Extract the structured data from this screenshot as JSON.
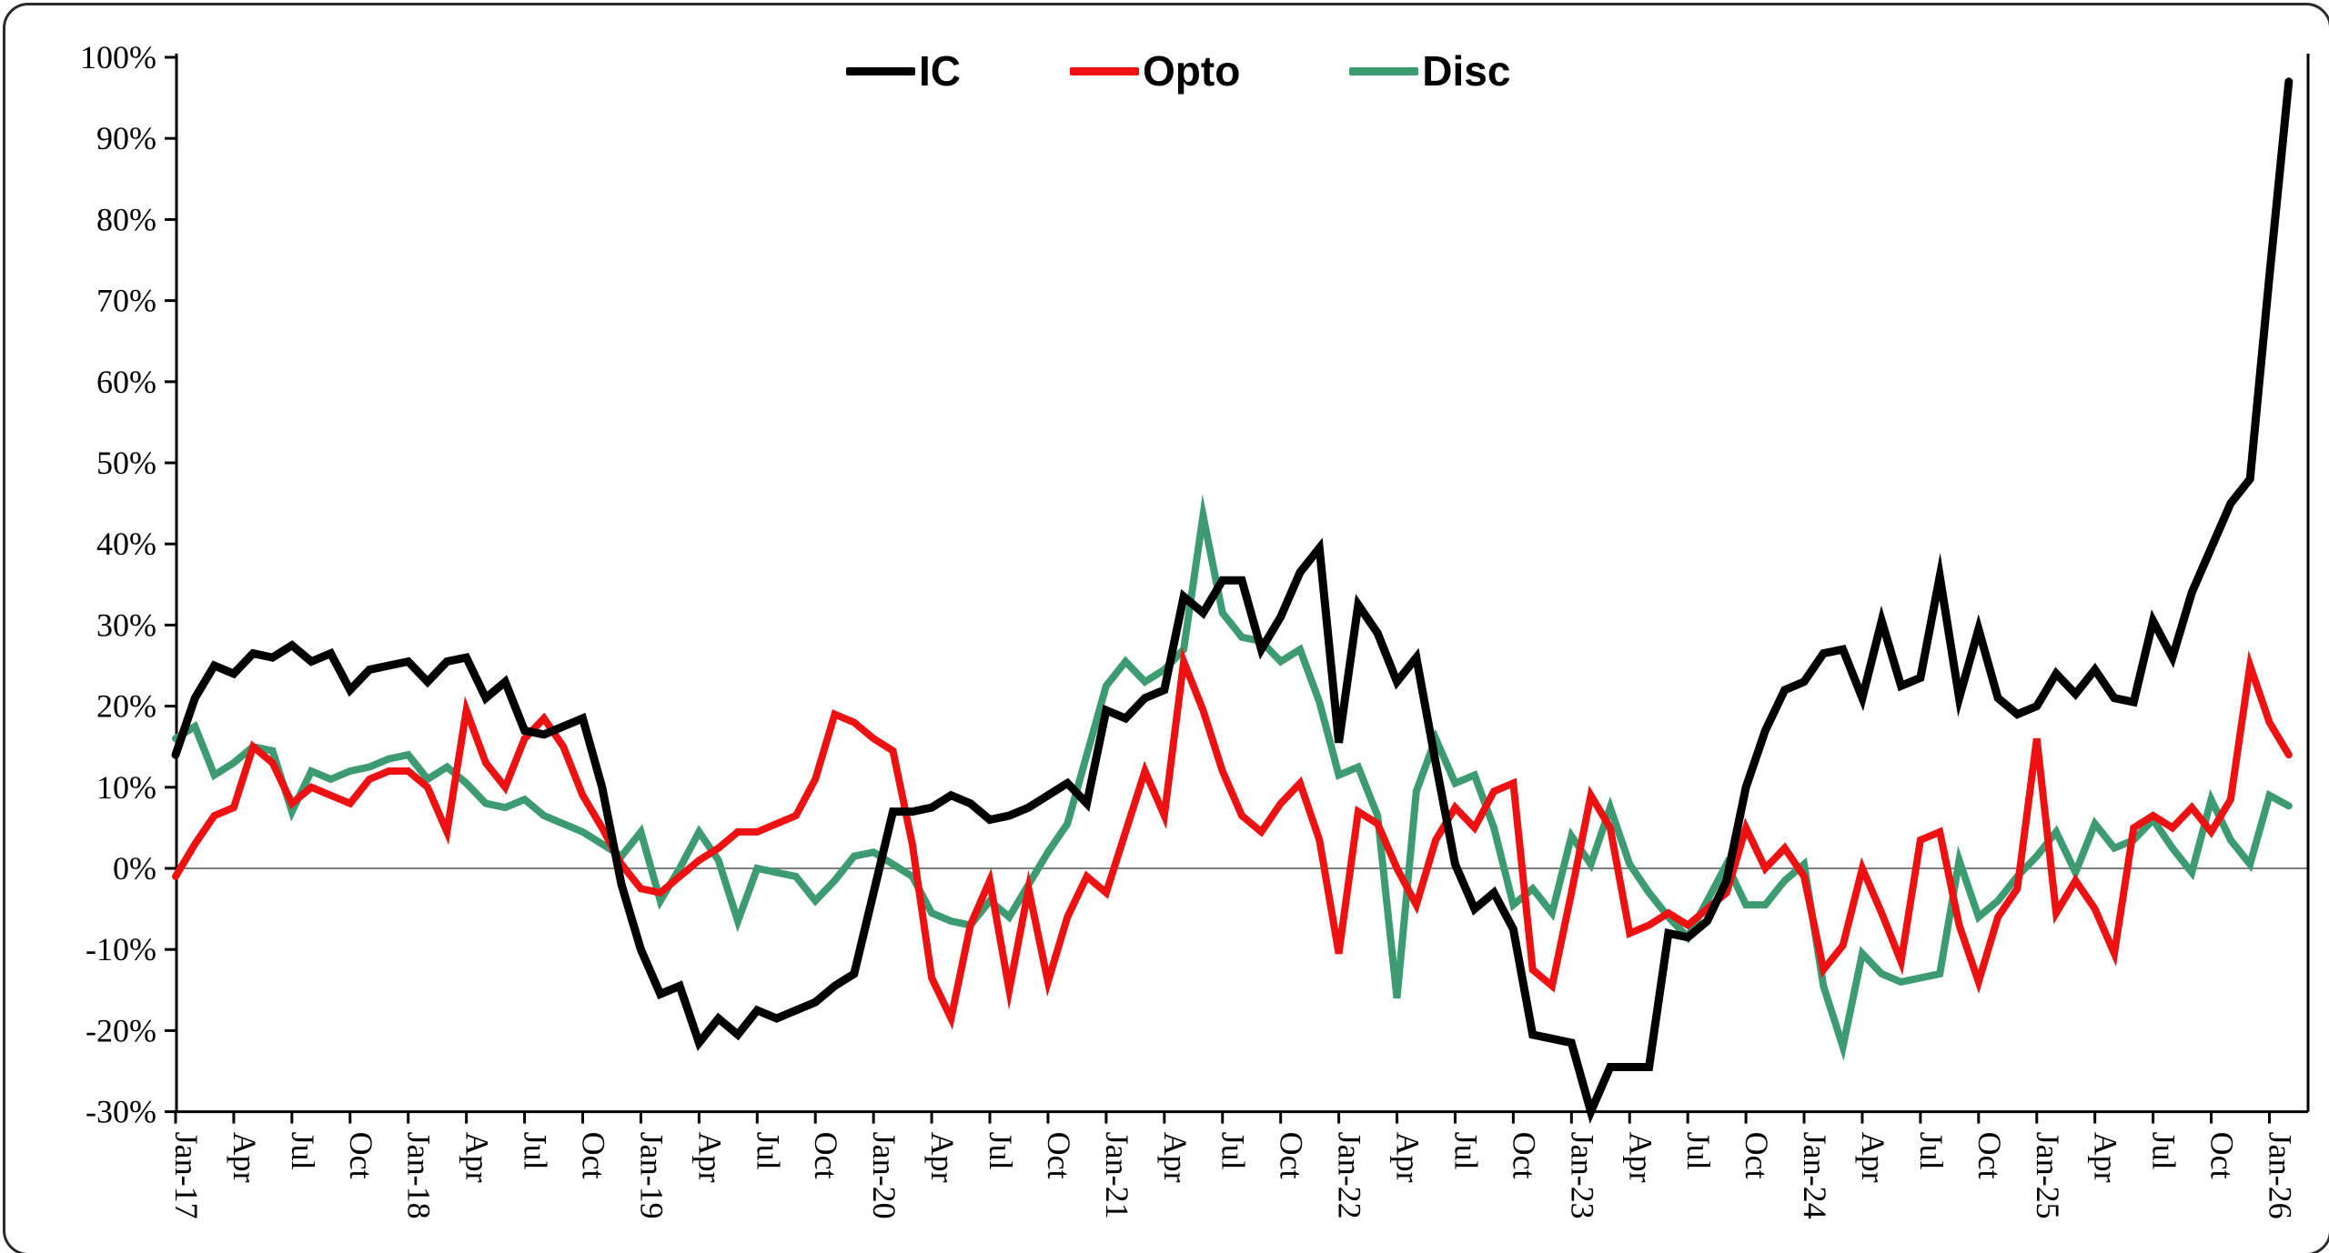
{
  "chart_data": {
    "type": "line",
    "title": "",
    "xlabel": "",
    "ylabel": "",
    "ylim": [
      -30,
      100
    ],
    "y_tick_step": 10,
    "y_tick_labels": [
      "100%",
      "90%",
      "80%",
      "70%",
      "60%",
      "50%",
      "40%",
      "30%",
      "20%",
      "10%",
      "0%",
      "-10%",
      "-20%",
      "-30%"
    ],
    "x_tick_every_months": 3,
    "x_tick_labels": [
      "Jan-17",
      "Apr",
      "Jul",
      "Oct",
      "Jan-18",
      "Apr",
      "Jul",
      "Oct",
      "Jan-19",
      "Apr",
      "Jul",
      "Oct",
      "Jan-20",
      "Apr",
      "Jul",
      "Oct",
      "Jan-21",
      "Apr",
      "Jul",
      "Oct",
      "Jan-22",
      "Apr",
      "Jul",
      "Oct",
      "Jan-23",
      "Apr",
      "Jul",
      "Oct",
      "Jan-24",
      "Apr",
      "Jul",
      "Oct",
      "Jan-25",
      "Apr",
      "Jul",
      "Oct",
      "Jan-26"
    ],
    "x_range_months": "Jan-2017 to Feb-2026",
    "grid": "zero-line-only",
    "legend_position": "top-center",
    "series": [
      {
        "name": "IC",
        "color": "#000000",
        "values": [
          14,
          21,
          25,
          24,
          26.5,
          26,
          27.5,
          25.5,
          26.5,
          22,
          24.5,
          25,
          25.5,
          23,
          25.5,
          26,
          21,
          23,
          17,
          16.5,
          17.5,
          18.5,
          10,
          -2,
          -10,
          -15.5,
          -14.5,
          -21.5,
          -18.5,
          -20.5,
          -17.5,
          -18.5,
          -17.5,
          -16.5,
          -14.5,
          -13,
          -3,
          7,
          7,
          7.5,
          9,
          8,
          6,
          6.5,
          7.5,
          9,
          10.5,
          8,
          19.5,
          18.5,
          21,
          22,
          33.5,
          31.5,
          35.5,
          35.5,
          27,
          31,
          36.5,
          39.5,
          15.5,
          32.5,
          29,
          23,
          26,
          13,
          0.5,
          -5,
          -3,
          -7.5,
          -20.5,
          -21,
          -21.5,
          -30,
          -24.5,
          -24.5,
          -24.5,
          -8,
          -8.5,
          -6.5,
          -1.5,
          10,
          17,
          22,
          23,
          26.5,
          27,
          21,
          30.5,
          22.5,
          23.5,
          36,
          21,
          29.5,
          21,
          19,
          20,
          24,
          21.5,
          24.5,
          21,
          20.5,
          30.5,
          26,
          34,
          39.5,
          45,
          48,
          73,
          97
        ]
      },
      {
        "name": "Opto",
        "color": "#ee1111",
        "values": [
          -1,
          3,
          6.5,
          7.5,
          15,
          13,
          8,
          10,
          9,
          8,
          11,
          12,
          12,
          10,
          4.5,
          19.5,
          13,
          10,
          16,
          18.5,
          15,
          9,
          5,
          0.5,
          -2.5,
          -3,
          -1,
          1,
          2.5,
          4.5,
          4.5,
          5.5,
          6.5,
          11,
          19,
          18,
          16,
          14.5,
          3,
          -13.5,
          -18.5,
          -7,
          -1.5,
          -15,
          -2.5,
          -14,
          -6,
          -1,
          -3,
          4.5,
          12,
          6.5,
          25.5,
          19.5,
          12,
          6.5,
          4.5,
          8,
          10.5,
          3.5,
          -10.5,
          7,
          5.5,
          0,
          -4.5,
          3.5,
          7.5,
          5,
          9.5,
          10.5,
          -12.5,
          -14.5,
          -3,
          9,
          5,
          -8,
          -7,
          -5.5,
          -7,
          -5,
          -3,
          5,
          0,
          2.5,
          -1,
          -12.5,
          -9.5,
          0,
          -5.5,
          -11.5,
          3.5,
          4.5,
          -7,
          -14,
          -6,
          -2.5,
          16,
          -5.5,
          -1.5,
          -5,
          -10.5,
          5,
          6.5,
          5,
          7.5,
          4.5,
          8.5,
          25,
          18,
          14
        ]
      },
      {
        "name": "Disc",
        "color": "#3d9b72",
        "values": [
          16,
          17.5,
          11.5,
          13,
          15,
          14.5,
          7,
          12,
          11,
          12,
          12.5,
          13.5,
          14,
          11,
          12.5,
          10.5,
          8,
          7.5,
          8.5,
          6.5,
          5.5,
          4.5,
          3,
          1.5,
          4.5,
          -4,
          0,
          4.5,
          1,
          -6.5,
          0,
          -0.5,
          -1,
          -4,
          -1.5,
          1.5,
          2,
          0.5,
          -1,
          -5.5,
          -6.5,
          -7,
          -4,
          -6,
          -2,
          2,
          5.5,
          14,
          22.5,
          25.5,
          23,
          24.5,
          27,
          43.5,
          31.5,
          28.5,
          28,
          25.5,
          27,
          20.5,
          11.5,
          12.5,
          6.5,
          -16,
          9.5,
          16,
          10.5,
          11.5,
          5,
          -4.5,
          -2.5,
          -5.5,
          4,
          0.5,
          7.5,
          0.5,
          -3,
          -6,
          -8.5,
          -4,
          0.5,
          -4.5,
          -4.5,
          -1.5,
          0.5,
          -14.5,
          -22,
          -10.5,
          -13,
          -14,
          -13.5,
          -13,
          1,
          -6,
          -4,
          -1,
          1.5,
          4.5,
          -0.5,
          5.5,
          2.5,
          3.5,
          6,
          2.5,
          -0.5,
          8.5,
          3.5,
          0.5,
          9,
          7.7
        ]
      }
    ]
  },
  "legend": [
    {
      "label": "IC",
      "color": "#000000"
    },
    {
      "label": "Opto",
      "color": "#ee1111"
    },
    {
      "label": "Disc",
      "color": "#3d9b72"
    }
  ],
  "style": {
    "axis_color": "#000000",
    "zero_line_color": "#808080",
    "background": "#ffffff",
    "line_width": 8
  }
}
